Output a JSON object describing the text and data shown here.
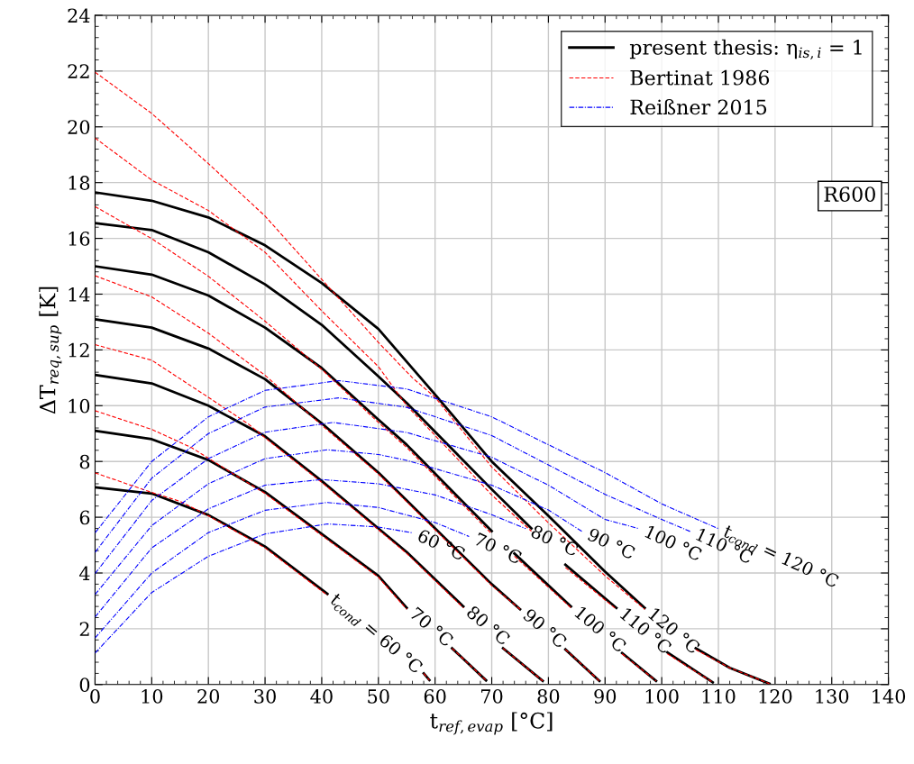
{
  "chart_data": {
    "type": "line",
    "xlabel": "t$_{ref,evap}$ [°C]",
    "ylabel": "ΔT$_{req,sup}$ [K]",
    "xlim": [
      0,
      140
    ],
    "xticks": [
      0,
      10,
      20,
      30,
      40,
      50,
      60,
      70,
      80,
      90,
      100,
      110,
      120,
      130,
      140
    ],
    "ylim": [
      0,
      24
    ],
    "yticks": [
      0,
      2,
      4,
      6,
      8,
      10,
      12,
      14,
      16,
      18,
      20,
      22,
      24
    ],
    "grid": true,
    "legend": "top right",
    "marker": "none",
    "series": [
      {
        "name": "present thesis: η$_{is,i}$ = 1",
        "color": "#000000",
        "line_style": "solid",
        "x": [
          0,
          10,
          20,
          30,
          41,
          49,
          58,
          59
        ],
        "values": [
          7.07,
          6.85,
          6.08,
          4.95,
          3.25,
          null,
          0.4,
          0.16
        ]
      },
      {
        "color": "#000000",
        "line_style": "solid",
        "x": [
          0,
          10,
          20,
          30,
          40,
          50,
          55,
          59,
          63,
          69
        ],
        "values": [
          9.1,
          8.8,
          8.05,
          6.9,
          5.4,
          3.9,
          2.75,
          null,
          1.3,
          0.15
        ]
      },
      {
        "color": "#000000",
        "line_style": "solid",
        "x": [
          0,
          10,
          20,
          30,
          40,
          50,
          55,
          65,
          68,
          72,
          79
        ],
        "values": [
          11.1,
          10.8,
          10.0,
          8.9,
          7.3,
          5.6,
          4.75,
          2.8,
          null,
          1.3,
          0.13
        ]
      },
      {
        "color": "#000000",
        "line_style": "solid",
        "x": [
          0,
          10,
          20,
          30,
          40,
          50,
          59,
          70,
          75,
          79,
          83,
          89
        ],
        "values": [
          13.1,
          12.8,
          12.05,
          10.95,
          9.37,
          7.6,
          5.8,
          3.6,
          2.7,
          null,
          1.26,
          0.13
        ]
      },
      {
        "color": "#000000",
        "line_style": "solid",
        "x": [
          0,
          10,
          20,
          30,
          40,
          50,
          55,
          70,
          72,
          74,
          84,
          88,
          93,
          99
        ],
        "values": [
          15.0,
          14.7,
          13.95,
          12.8,
          11.35,
          9.5,
          8.6,
          5.5,
          null,
          4.7,
          2.8,
          null,
          1.13,
          0.13
        ]
      },
      {
        "color": "#000000",
        "line_style": "solid",
        "x": [
          0,
          10,
          20,
          30,
          40,
          50,
          55,
          70,
          77,
          80,
          83,
          92,
          96,
          101,
          109
        ],
        "values": [
          16.55,
          16.3,
          15.5,
          14.35,
          12.9,
          11.05,
          10.1,
          7.0,
          5.6,
          null,
          4.3,
          2.75,
          null,
          1.15,
          0.08
        ]
      },
      {
        "color": "#000000",
        "line_style": "solid",
        "x": [
          0,
          10,
          20,
          30,
          40,
          50,
          60,
          70,
          80,
          90,
          97,
          101,
          106,
          112,
          119
        ],
        "values": [
          17.65,
          17.35,
          16.75,
          15.75,
          14.4,
          12.75,
          10.4,
          8.0,
          6.05,
          4.05,
          2.75,
          null,
          1.3,
          0.6,
          0.03
        ]
      },
      {
        "name": "Bertinat 1986",
        "color": "#ff0000",
        "line_style": "dashed",
        "x": [
          0,
          10,
          15,
          20,
          30,
          41,
          49,
          58,
          59
        ],
        "values": [
          7.59,
          6.89,
          6.57,
          6.05,
          4.9,
          3.2,
          null,
          0.4,
          0.16
        ]
      },
      {
        "color": "#ff0000",
        "line_style": "dashed",
        "x": [
          0,
          10,
          17,
          22,
          30,
          40,
          50,
          55,
          59,
          63,
          69
        ],
        "values": [
          9.82,
          9.15,
          8.5,
          7.86,
          6.85,
          5.35,
          3.85,
          2.7,
          null,
          1.3,
          0.15
        ]
      },
      {
        "color": "#ff0000",
        "line_style": "dashed",
        "x": [
          0,
          10,
          20,
          27,
          30,
          40,
          50,
          55,
          65,
          68,
          72,
          79
        ],
        "values": [
          12.19,
          11.63,
          10.3,
          9.35,
          8.85,
          7.25,
          5.55,
          4.7,
          2.75,
          null,
          1.3,
          0.13
        ]
      },
      {
        "color": "#ff0000",
        "line_style": "dashed",
        "x": [
          0,
          10,
          20,
          30,
          40,
          50,
          59,
          70,
          75,
          79,
          83,
          89
        ],
        "values": [
          14.66,
          13.9,
          12.6,
          11.09,
          9.3,
          7.55,
          5.75,
          3.55,
          2.7,
          null,
          1.26,
          0.13
        ]
      },
      {
        "color": "#ff0000",
        "line_style": "dashed",
        "x": [
          0,
          10,
          20,
          30,
          40,
          50,
          55,
          70,
          72,
          74,
          84,
          88,
          93,
          99
        ],
        "values": [
          17.14,
          15.99,
          14.64,
          13.03,
          11.3,
          9.4,
          8.5,
          5.4,
          null,
          4.6,
          2.75,
          null,
          1.1,
          0.13
        ]
      },
      {
        "color": "#ff0000",
        "line_style": "dashed",
        "x": [
          0,
          10,
          20,
          30,
          40,
          50,
          55,
          70,
          77,
          80,
          83,
          92,
          96,
          101,
          109
        ],
        "values": [
          19.6,
          18.09,
          17.0,
          15.5,
          13.4,
          11.4,
          10.0,
          6.8,
          5.5,
          null,
          4.2,
          2.7,
          null,
          1.1,
          0.08
        ]
      },
      {
        "color": "#ff0000",
        "line_style": "dashed",
        "x": [
          0,
          10,
          20,
          30,
          40,
          50,
          56,
          60,
          70,
          80,
          90,
          97,
          101,
          106,
          112,
          119
        ],
        "values": [
          21.96,
          20.48,
          18.68,
          16.8,
          14.53,
          12.27,
          11.0,
          10.3,
          7.8,
          5.8,
          3.9,
          2.7,
          null,
          1.25,
          0.6,
          0.03
        ]
      },
      {
        "name": "Reißner 2015",
        "color": "#0000ff",
        "line_style": "dashdot",
        "x": [
          0,
          10,
          20,
          30,
          41,
          50,
          56
        ],
        "values": [
          1.13,
          3.3,
          4.6,
          5.4,
          5.76,
          5.65,
          5.44
        ]
      },
      {
        "color": "#0000ff",
        "line_style": "dashdot",
        "x": [
          0,
          10,
          20,
          30,
          41,
          50,
          60,
          66
        ],
        "values": [
          1.67,
          4.0,
          5.45,
          6.25,
          6.53,
          6.35,
          5.81,
          5.31
        ]
      },
      {
        "color": "#0000ff",
        "line_style": "dashdot",
        "x": [
          0,
          10,
          20,
          30,
          40,
          50,
          60,
          70,
          76
        ],
        "values": [
          2.42,
          4.9,
          6.3,
          7.15,
          7.35,
          7.2,
          6.8,
          6.09,
          5.59
        ]
      },
      {
        "color": "#0000ff",
        "line_style": "dashdot",
        "x": [
          0,
          10,
          20,
          30,
          41,
          50,
          55,
          70,
          80,
          86
        ],
        "values": [
          3.23,
          5.7,
          7.2,
          8.1,
          8.42,
          8.25,
          8.04,
          7.15,
          6.26,
          5.48
        ]
      },
      {
        "color": "#0000ff",
        "line_style": "dashdot",
        "x": [
          0,
          10,
          20,
          30,
          42,
          55,
          70,
          80,
          90,
          96
        ],
        "values": [
          3.98,
          6.6,
          8.1,
          9.05,
          9.4,
          9.04,
          8.15,
          7.15,
          5.92,
          5.59
        ]
      },
      {
        "color": "#0000ff",
        "line_style": "dashdot",
        "x": [
          0,
          10,
          20,
          30,
          43,
          55,
          70,
          90,
          100,
          105
        ],
        "values": [
          4.74,
          7.4,
          9.0,
          9.95,
          10.28,
          9.94,
          8.93,
          6.82,
          5.92,
          5.49
        ]
      },
      {
        "color": "#0000ff",
        "line_style": "dashdot",
        "x": [
          0,
          10,
          20,
          30,
          43,
          55,
          70,
          90,
          100,
          110
        ],
        "values": [
          5.44,
          8.0,
          9.6,
          10.55,
          10.9,
          10.6,
          9.6,
          7.6,
          6.48,
          5.59
        ]
      }
    ],
    "annotations": [
      {
        "text": "t$_{cond}$ = 60 °C",
        "x": 41,
        "y": 3.25
      },
      {
        "text": "70 °C",
        "x": 55,
        "y": 2.75
      },
      {
        "text": "80 °C",
        "x": 65,
        "y": 2.8
      },
      {
        "text": "90 °C",
        "x": 75,
        "y": 2.7
      },
      {
        "text": "100 °C",
        "x": 84,
        "y": 2.8
      },
      {
        "text": "110 °C",
        "x": 92,
        "y": 2.75
      },
      {
        "text": "120 °C",
        "x": 97,
        "y": 2.75
      },
      {
        "text": "60 °C",
        "x": 56,
        "y": 5.44
      },
      {
        "text": "70 °C",
        "x": 66,
        "y": 5.31
      },
      {
        "text": "80 °C",
        "x": 76,
        "y": 5.59
      },
      {
        "text": "90 °C",
        "x": 86,
        "y": 5.48
      },
      {
        "text": "100 °C",
        "x": 96,
        "y": 5.59
      },
      {
        "text": "110 °C",
        "x": 105,
        "y": 5.49
      },
      {
        "text": "t$_{cond}$ = 120 °C",
        "x": 110,
        "y": 5.59
      },
      "R600"
    ]
  }
}
